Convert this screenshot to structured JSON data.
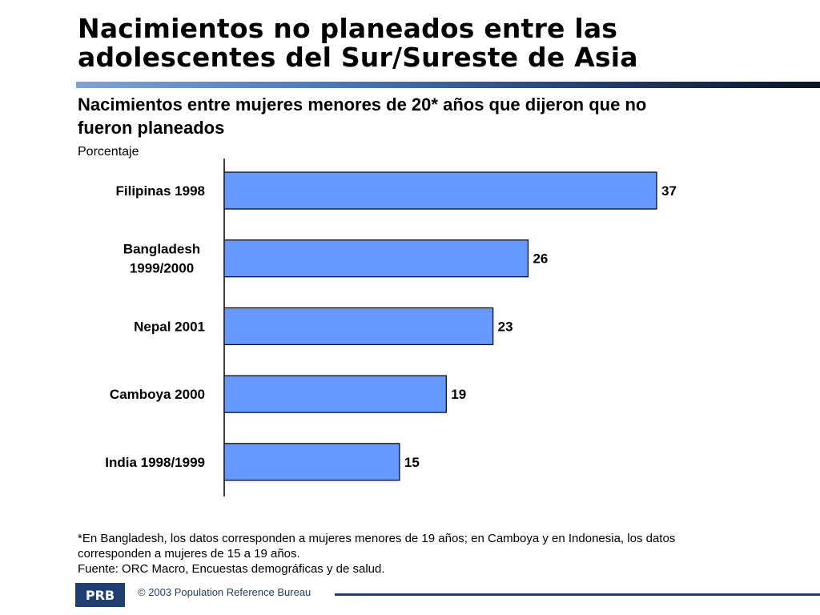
{
  "header": {
    "title_line1": "Nacimientos no planeados entre las",
    "title_line2": "adolescentes del Sur/Sureste de Asia",
    "subtitle_line1": "Nacimientos entre mujeres menores de 20* años que dijeron que no",
    "subtitle_line2": "fueron planeados"
  },
  "chart_data": {
    "type": "bar",
    "orientation": "horizontal",
    "ylabel": "Porcentaje",
    "categories": [
      [
        "Filipinas 1998"
      ],
      [
        "Bangladesh",
        "1999/2000"
      ],
      [
        "Nepal 2001"
      ],
      [
        "Camboya 2000"
      ],
      [
        "India 1998/1999"
      ]
    ],
    "values": [
      37,
      26,
      23,
      19,
      15
    ],
    "xlim": [
      0,
      40
    ],
    "bar_color": "#6699ff",
    "data_labels": true,
    "grid": false,
    "legend": "none"
  },
  "footnote": {
    "line1": "*En Bangladesh, los datos corresponden a mujeres menores de 19 años; en Camboya y en Indonesia, los datos",
    "line2": "corresponden a mujeres de 15 a 19 años.",
    "line3": "Fuente: ORC Macro, Encuestas demográficas y de salud."
  },
  "footer": {
    "logo_text": "PRB",
    "copyright": "© 2003 Population Reference Bureau"
  }
}
